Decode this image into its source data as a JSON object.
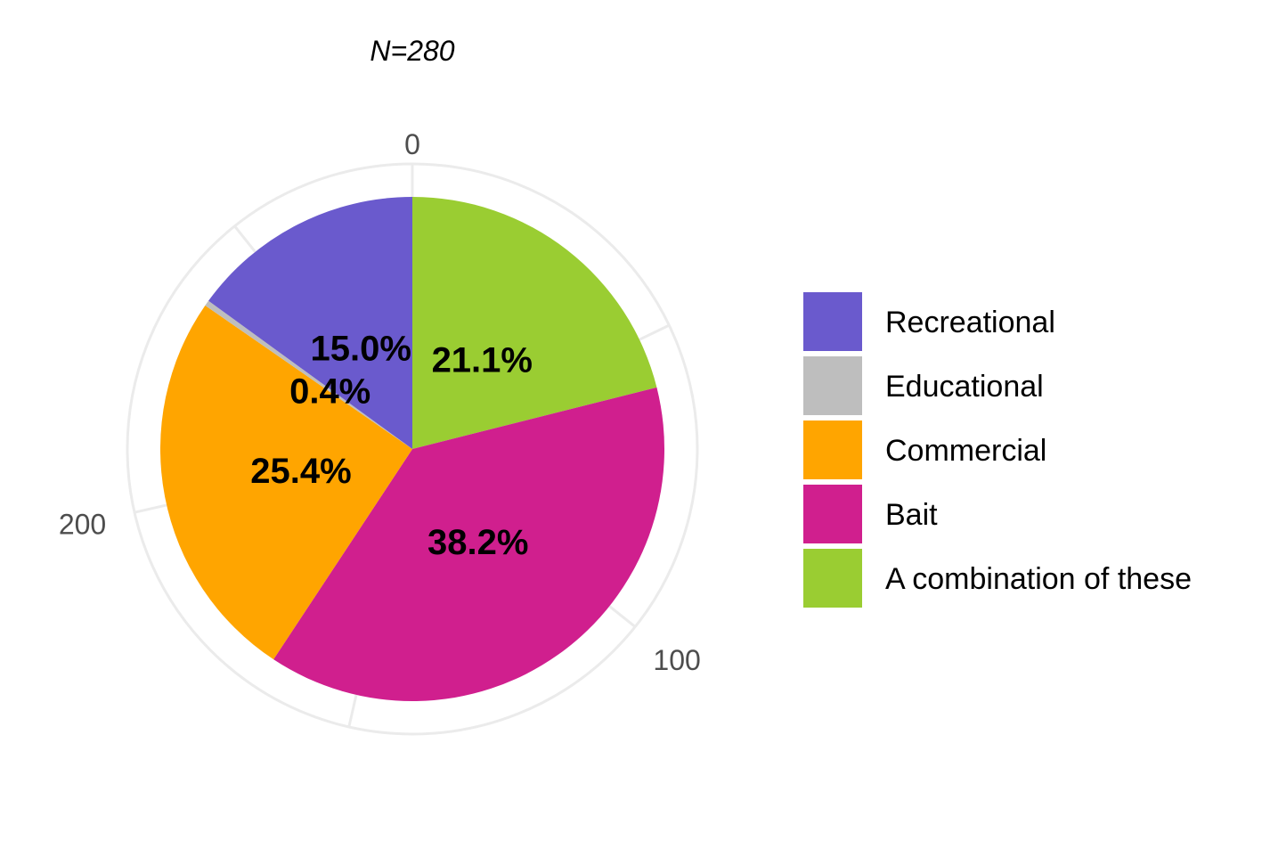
{
  "chart_data": {
    "type": "pie",
    "title": "N=280",
    "total": 280,
    "slices": [
      {
        "label": "A combination of these",
        "value": 59,
        "percent_label": "21.1%",
        "color": "#9ACD32"
      },
      {
        "label": "Bait",
        "value": 107,
        "percent_label": "38.2%",
        "color": "#D01F8E"
      },
      {
        "label": "Commercial",
        "value": 71,
        "percent_label": "25.4%",
        "color": "#FFA500"
      },
      {
        "label": "Educational",
        "value": 1,
        "percent_label": "0.4%",
        "color": "#BEBEBE"
      },
      {
        "label": "Recreational",
        "value": 42,
        "percent_label": "15.0%",
        "color": "#6A5ACD"
      }
    ],
    "axis_ticks": [
      {
        "value": 0,
        "label": "0"
      },
      {
        "value": 100,
        "label": "100"
      },
      {
        "value": 200,
        "label": "200"
      }
    ],
    "legend": {
      "position": "right",
      "entries": [
        {
          "label": "Recreational",
          "color": "#6A5ACD"
        },
        {
          "label": "Educational",
          "color": "#BEBEBE"
        },
        {
          "label": "Commercial",
          "color": "#FFA500"
        },
        {
          "label": "Bait",
          "color": "#D01F8E"
        },
        {
          "label": "A combination of these",
          "color": "#9ACD32"
        }
      ]
    }
  }
}
